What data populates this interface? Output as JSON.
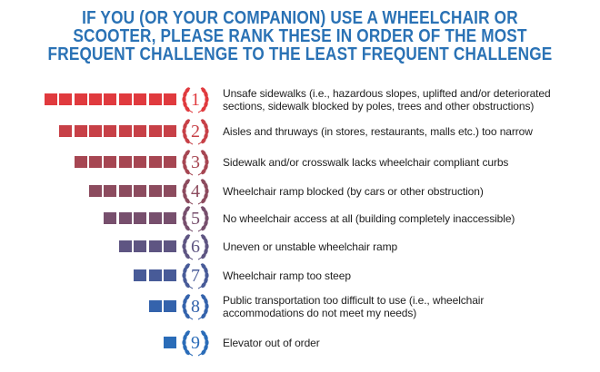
{
  "title_lines": [
    "IF YOU (OR YOUR COMPANION) USE A WHEELCHAIR OR",
    "SCOOTER, PLEASE RANK THESE IN ORDER OF THE MOST",
    "FREQUENT CHALLENGE TO THE LEAST FREQUENT CHALLENGE"
  ],
  "colors": {
    "title": "#2a72b5",
    "text": "#1e1e1e"
  },
  "chart_data": {
    "type": "bar",
    "title": "IF YOU (OR YOUR COMPANION) USE A WHEELCHAIR OR SCOOTER, PLEASE RANK THESE IN ORDER OF THE MOST FREQUENT CHALLENGE TO THE LEAST FREQUENT CHALLENGE",
    "orientation": "horizontal-pictogram",
    "icon": "laurel-wreath-icon",
    "items": [
      {
        "rank": "1",
        "squares": 9,
        "color": "#e03a3e",
        "lines": [
          "Unsafe sidewalks (i.e., hazardous slopes, uplifted and/or deteriorated",
          "sections, sidewalk blocked by poles, trees and other obstructions)"
        ]
      },
      {
        "rank": "2",
        "squares": 8,
        "color": "#c74047",
        "lines": [
          "Aisles and thruways (in stores, restaurants, malls etc.) too narrow"
        ]
      },
      {
        "rank": "3",
        "squares": 7,
        "color": "#a64652",
        "lines": [
          "Sidewalk and/or crosswalk lacks wheelchair compliant curbs"
        ]
      },
      {
        "rank": "4",
        "squares": 6,
        "color": "#8c4b5e",
        "lines": [
          "Wheelchair ramp blocked (by cars or other obstruction)"
        ]
      },
      {
        "rank": "5",
        "squares": 5,
        "color": "#774f6d",
        "lines": [
          "No wheelchair access at all (building completely inaccessible)"
        ]
      },
      {
        "rank": "6",
        "squares": 4,
        "color": "#5e5582",
        "lines": [
          "Uneven or unstable wheelchair ramp"
        ]
      },
      {
        "rank": "7",
        "squares": 3,
        "color": "#485b98",
        "lines": [
          "Wheelchair ramp too steep"
        ]
      },
      {
        "rank": "8",
        "squares": 2,
        "color": "#3463ac",
        "lines": [
          "Public transportation too difficult to use (i.e., wheelchair",
          "accommodations do not meet my needs)"
        ]
      },
      {
        "rank": "9",
        "squares": 1,
        "color": "#2a6cb8",
        "lines": [
          "Elevator out of order"
        ]
      }
    ]
  }
}
